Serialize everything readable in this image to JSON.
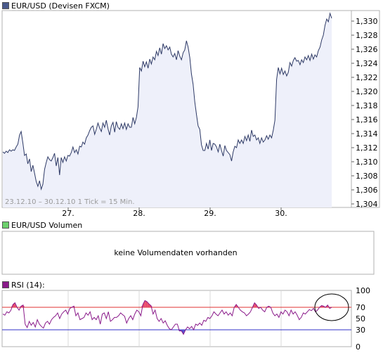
{
  "chart_data": [
    {
      "type": "area",
      "legend": "EUR/USD (Devisen FXCM)",
      "footnote": "23.12.10 – 30.12.10   1 Tick = 15 Min.",
      "x_ticks": [
        "27.",
        "28.",
        "29.",
        "30."
      ],
      "y_ticks": [
        "1,330",
        "1,328",
        "1,326",
        "1,324",
        "1,322",
        "1,320",
        "1,318",
        "1,316",
        "1,314",
        "1,312",
        "1,310",
        "1,308",
        "1,306",
        "1,304"
      ],
      "ylim": [
        1.3035,
        1.3315
      ],
      "grid": false,
      "series": [
        {
          "values": [
            1.3114,
            1.3112,
            1.3115,
            1.3113,
            1.3117,
            1.3115,
            1.3117,
            1.3116,
            1.3121,
            1.3125,
            1.3138,
            1.3143,
            1.3127,
            1.3109,
            1.3111,
            1.3097,
            1.3104,
            1.3086,
            1.3095,
            1.3084,
            1.3072,
            1.3065,
            1.3073,
            1.3061,
            1.3068,
            1.3089,
            1.3099,
            1.3107,
            1.3103,
            1.3101,
            1.3106,
            1.3112,
            1.3094,
            1.3106,
            1.3081,
            1.3106,
            1.3099,
            1.3107,
            1.3101,
            1.3109,
            1.3108,
            1.3113,
            1.3121,
            1.3113,
            1.3117,
            1.3111,
            1.3122,
            1.3121,
            1.3128,
            1.3125,
            1.3134,
            1.3138,
            1.3144,
            1.3149,
            1.3151,
            1.3139,
            1.3146,
            1.3155,
            1.3148,
            1.3143,
            1.3155,
            1.3149,
            1.3159,
            1.3147,
            1.3138,
            1.3151,
            1.3156,
            1.3142,
            1.3157,
            1.3149,
            1.3146,
            1.3154,
            1.3147,
            1.3155,
            1.3146,
            1.3154,
            1.3149,
            1.3149,
            1.3163,
            1.3154,
            1.3163,
            1.3178,
            1.3234,
            1.3229,
            1.3243,
            1.3235,
            1.3242,
            1.3233,
            1.3246,
            1.3239,
            1.3249,
            1.3245,
            1.3257,
            1.3251,
            1.3262,
            1.3253,
            1.3268,
            1.3261,
            1.3265,
            1.3259,
            1.3263,
            1.3253,
            1.3249,
            1.3254,
            1.3245,
            1.3258,
            1.325,
            1.3245,
            1.3255,
            1.3259,
            1.3272,
            1.3263,
            1.3248,
            1.3225,
            1.321,
            1.3185,
            1.3167,
            1.3151,
            1.3146,
            1.3124,
            1.3116,
            1.3116,
            1.3126,
            1.3118,
            1.3131,
            1.3116,
            1.3126,
            1.3125,
            1.3121,
            1.3114,
            1.3125,
            1.3116,
            1.3108,
            1.3123,
            1.3116,
            1.3113,
            1.311,
            1.3101,
            1.3114,
            1.3122,
            1.312,
            1.3131,
            1.3126,
            1.3131,
            1.3126,
            1.3136,
            1.313,
            1.3138,
            1.3129,
            1.3145,
            1.3136,
            1.3138,
            1.3131,
            1.3134,
            1.3126,
            1.3134,
            1.3128,
            1.3131,
            1.3137,
            1.3132,
            1.3138,
            1.3134,
            1.3145,
            1.3159,
            1.3217,
            1.3234,
            1.3225,
            1.3233,
            1.3224,
            1.3229,
            1.3222,
            1.3227,
            1.3241,
            1.3236,
            1.3244,
            1.3248,
            1.3243,
            1.3244,
            1.3238,
            1.3245,
            1.3241,
            1.3249,
            1.3245,
            1.3251,
            1.3244,
            1.3253,
            1.3246,
            1.3252,
            1.3249,
            1.3258,
            1.3263,
            1.3273,
            1.328,
            1.3294,
            1.3303,
            1.3299,
            1.3311,
            1.3304
          ]
        }
      ]
    },
    {
      "type": "bar",
      "legend": "EUR/USD Volumen",
      "message": "keine Volumendaten vorhanden"
    },
    {
      "type": "line",
      "legend": "RSI (14):",
      "y_ticks": [
        "100",
        "70",
        "50",
        "30",
        "0"
      ],
      "ylim": [
        0,
        100
      ],
      "reference_lines": [
        {
          "value": 70,
          "color": "#e03030"
        },
        {
          "value": 30,
          "color": "#3030c8"
        }
      ],
      "annotation": "circle around the latest RSI readings",
      "series": [
        {
          "values": [
            58,
            56,
            62,
            60,
            65,
            75,
            78,
            70,
            65,
            72,
            74,
            40,
            34,
            45,
            38,
            43,
            35,
            48,
            40,
            36,
            33,
            42,
            45,
            40,
            48,
            52,
            55,
            60,
            50,
            58,
            62,
            65,
            58,
            68,
            70,
            72,
            55,
            60,
            48,
            50,
            52,
            60,
            56,
            62,
            48,
            52,
            48,
            55,
            40,
            58,
            60,
            50,
            62,
            45,
            48,
            52,
            52,
            55,
            60,
            57,
            54,
            42,
            50,
            55,
            48,
            58,
            65,
            62,
            55,
            75,
            82,
            80,
            76,
            73,
            58,
            65,
            50,
            45,
            50,
            42,
            46,
            38,
            32,
            30,
            35,
            40,
            40,
            28,
            28,
            22,
            30,
            35,
            32,
            36,
            30,
            40,
            38,
            42,
            38,
            47,
            45,
            52,
            50,
            55,
            62,
            58,
            55,
            60,
            65,
            58,
            62,
            56,
            60,
            55,
            70,
            75,
            70,
            65,
            62,
            60,
            55,
            58,
            62,
            70,
            78,
            74,
            68,
            70,
            65,
            62,
            70,
            72,
            70,
            60,
            55,
            58,
            52,
            62,
            58,
            65,
            62,
            55,
            65,
            58,
            62,
            56,
            48,
            52,
            60,
            58,
            62,
            66,
            64,
            68,
            62,
            65,
            70,
            73,
            72,
            70,
            74,
            68,
            70
          ]
        }
      ]
    }
  ]
}
